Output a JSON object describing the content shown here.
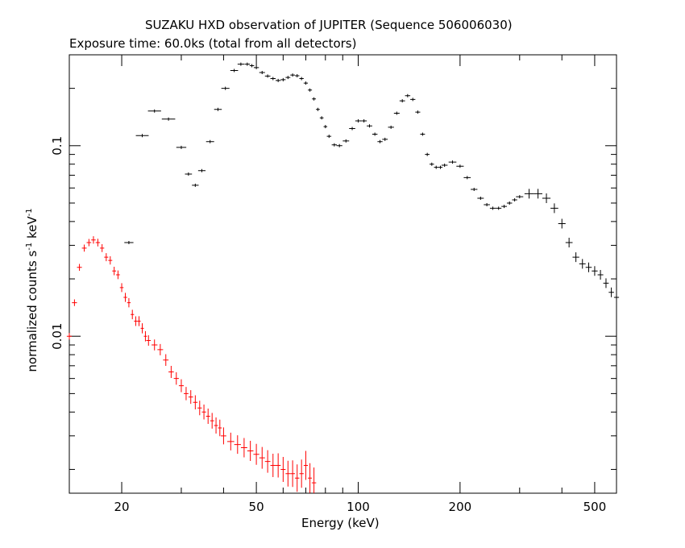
{
  "title": "SUZAKU HXD observation of JUPITER (Sequence 506006030)",
  "subtitle": "Exposure time: 60.0ks (total from all detectors)",
  "chart_data": {
    "type": "scatter",
    "xlabel": "Energy (keV)",
    "ylabel": "normalized counts s",
    "ylabel_unit_a": "-1",
    "ylabel_keV": " keV",
    "ylabel_unit_b": "-1",
    "x_scale": "log",
    "y_scale": "log",
    "xlim": [
      14,
      580
    ],
    "ylim": [
      0.0015,
      0.3
    ],
    "x_ticks": [
      20,
      50,
      100,
      200,
      500
    ],
    "y_ticks": [
      0.01,
      0.1
    ],
    "grid": false,
    "legend": "none",
    "colors": {
      "upper": "#000000",
      "lower": "#ff0000"
    },
    "series": [
      {
        "color": "#000000",
        "x": [
          21,
          23,
          25,
          27.5,
          30,
          31.5,
          33,
          34.5,
          36.5,
          38.5,
          40.5,
          43,
          45,
          47,
          48.5,
          50,
          52,
          54,
          56,
          58,
          60,
          62,
          64,
          66,
          68,
          70,
          72,
          74,
          76,
          78,
          80,
          82,
          85,
          88,
          92,
          96,
          100,
          104,
          108,
          112,
          116,
          120,
          125,
          130,
          135,
          140,
          145,
          150,
          155,
          160,
          165,
          170,
          175,
          180,
          190,
          200,
          210,
          220,
          230,
          240,
          250,
          260,
          270,
          280,
          290,
          300,
          320,
          340,
          360,
          380,
          400,
          420,
          440,
          460,
          480,
          500,
          520,
          540,
          560,
          580
        ],
        "y": [
          0.031,
          0.113,
          0.152,
          0.138,
          0.098,
          0.071,
          0.062,
          0.074,
          0.105,
          0.155,
          0.2,
          0.248,
          0.268,
          0.268,
          0.263,
          0.257,
          0.242,
          0.232,
          0.225,
          0.22,
          0.222,
          0.228,
          0.235,
          0.233,
          0.225,
          0.213,
          0.196,
          0.176,
          0.155,
          0.14,
          0.126,
          0.112,
          0.101,
          0.1,
          0.106,
          0.123,
          0.135,
          0.135,
          0.127,
          0.115,
          0.105,
          0.108,
          0.125,
          0.148,
          0.172,
          0.183,
          0.175,
          0.15,
          0.115,
          0.09,
          0.08,
          0.077,
          0.077,
          0.079,
          0.082,
          0.078,
          0.068,
          0.059,
          0.053,
          0.049,
          0.047,
          0.047,
          0.048,
          0.05,
          0.052,
          0.054,
          0.056,
          0.056,
          0.053,
          0.047,
          0.039,
          0.031,
          0.026,
          0.024,
          0.023,
          0.022,
          0.021,
          0.019,
          0.017,
          0.016
        ]
      },
      {
        "color": "#ff0000",
        "x": [
          14,
          14.5,
          15,
          15.5,
          16,
          16.5,
          17,
          17.5,
          18,
          18.5,
          19,
          19.5,
          20,
          20.5,
          21,
          21.5,
          22,
          22.5,
          23,
          23.5,
          24,
          25,
          26,
          27,
          28,
          29,
          30,
          31,
          32,
          33,
          34,
          35,
          36,
          37,
          38,
          39,
          40,
          42,
          44,
          46,
          48,
          50,
          52,
          54,
          56,
          58,
          60,
          62,
          64,
          66,
          68,
          70,
          72,
          74
        ],
        "y": [
          0.01,
          0.015,
          0.023,
          0.029,
          0.031,
          0.032,
          0.031,
          0.029,
          0.026,
          0.025,
          0.022,
          0.021,
          0.018,
          0.016,
          0.015,
          0.013,
          0.012,
          0.012,
          0.011,
          0.01,
          0.0095,
          0.009,
          0.0085,
          0.0075,
          0.0065,
          0.006,
          0.0055,
          0.005,
          0.0048,
          0.0045,
          0.0042,
          0.004,
          0.0038,
          0.0036,
          0.0034,
          0.0033,
          0.003,
          0.0028,
          0.0027,
          0.0026,
          0.0025,
          0.0024,
          0.0023,
          0.0022,
          0.0021,
          0.0021,
          0.002,
          0.0019,
          0.0019,
          0.0018,
          0.0019,
          0.0021,
          0.0018,
          0.0017
        ]
      }
    ]
  }
}
